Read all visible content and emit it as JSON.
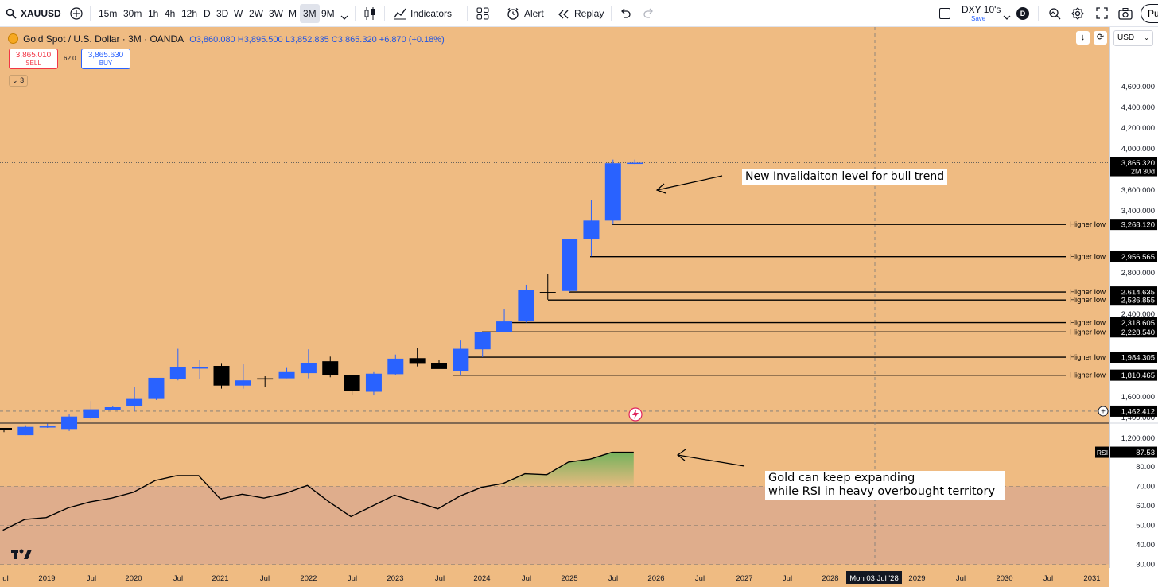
{
  "toolbar": {
    "symbol": "XAUUSD",
    "timeframes": [
      "15m",
      "30m",
      "1h",
      "4h",
      "12h",
      "D",
      "3D",
      "W",
      "2W",
      "3W",
      "M",
      "3M",
      "9M"
    ],
    "active_timeframe": "3M",
    "indicators_label": "Indicators",
    "alert_label": "Alert",
    "replay_label": "Replay",
    "layout_name": "DXY 10's",
    "layout_sub": "Save",
    "avatar_letter": "D",
    "publish_label": "Pu"
  },
  "legend": {
    "title": "Gold Spot / U.S. Dollar · 3M · OANDA",
    "open": "O3,860.080",
    "high": "H3,895.500",
    "low": "L3,852.835",
    "close": "C3,865.320",
    "change": "+6.870 (+0.18%)",
    "sell_price": "3,865.010",
    "sell_label": "SELL",
    "spread": "62.0",
    "buy_price": "3,865.630",
    "buy_label": "BUY",
    "collapsed_count": "3"
  },
  "currency_selector": "USD",
  "price_axis_labels": [
    "4,600.000",
    "4,400.000",
    "4,200.000",
    "4,000.000",
    "3,600.000",
    "3,400.000",
    "2,800.000",
    "2,400.000",
    "1,600.000",
    "1,400.000",
    "1,200.000"
  ],
  "price_markers": [
    {
      "label": "3,865.320",
      "sub": "2M 30d",
      "type": "current"
    },
    {
      "label": "1,462.412",
      "type": "crosshair"
    }
  ],
  "time_axis_labels": [
    "ul",
    "2019",
    "Jul",
    "2020",
    "Jul",
    "2021",
    "Jul",
    "2022",
    "Jul",
    "2023",
    "Jul",
    "2024",
    "Jul",
    "2025",
    "Jul",
    "2026",
    "Jul",
    "2027",
    "Jul",
    "2028",
    "2029",
    "Jul",
    "2030",
    "Jul",
    "2031"
  ],
  "crosshair_date": "Mon 03 Jul '28",
  "rsi": {
    "label": "RSI",
    "value": "87.53",
    "axis_labels": [
      "80.00",
      "70.00",
      "60.00",
      "50.00",
      "40.00",
      "30.00"
    ],
    "overbought": 70,
    "oversold": 30
  },
  "annotations": {
    "invalidation": "New Invalidaiton level for bull trend",
    "rsi_note_line1": "Gold can keep expanding",
    "rsi_note_line2": "while RSI in heavy overbought territory"
  },
  "higher_lows": [
    {
      "label": "Higher low",
      "price": "3,268.120"
    },
    {
      "label": "Higher low",
      "price": "2,956.565"
    },
    {
      "label": "Higher low",
      "price": "2,614.635"
    },
    {
      "label": "Higher low",
      "price": "2,536.855"
    },
    {
      "label": "Higher low",
      "price": "2,318.605"
    },
    {
      "label": "Higher low",
      "price": "2,228.540"
    },
    {
      "label": "Higher low",
      "price": "1,984.305"
    },
    {
      "label": "Higher low",
      "price": "1,810.465"
    }
  ],
  "chart_data": {
    "type": "candlestick",
    "series": [
      {
        "name": "candles",
        "values": [
          {
            "o": 1300,
            "h": 1300,
            "l": 1260,
            "c": 1280
          },
          {
            "o": 1230,
            "h": 1325,
            "l": 1230,
            "c": 1310
          },
          {
            "o": 1310,
            "h": 1340,
            "l": 1300,
            "c": 1315
          },
          {
            "o": 1290,
            "h": 1430,
            "l": 1270,
            "c": 1410
          },
          {
            "o": 1400,
            "h": 1560,
            "l": 1380,
            "c": 1480
          },
          {
            "o": 1470,
            "h": 1510,
            "l": 1470,
            "c": 1500
          },
          {
            "o": 1510,
            "h": 1700,
            "l": 1460,
            "c": 1580
          },
          {
            "o": 1580,
            "h": 1780,
            "l": 1570,
            "c": 1785
          },
          {
            "o": 1770,
            "h": 2065,
            "l": 1760,
            "c": 1890
          },
          {
            "o": 1880,
            "h": 1960,
            "l": 1770,
            "c": 1885
          },
          {
            "o": 1900,
            "h": 1920,
            "l": 1680,
            "c": 1710
          },
          {
            "o": 1710,
            "h": 1915,
            "l": 1680,
            "c": 1760
          },
          {
            "o": 1780,
            "h": 1800,
            "l": 1700,
            "c": 1770
          },
          {
            "o": 1780,
            "h": 1880,
            "l": 1780,
            "c": 1840
          },
          {
            "o": 1830,
            "h": 2060,
            "l": 1780,
            "c": 1930
          },
          {
            "o": 1945,
            "h": 1990,
            "l": 1790,
            "c": 1815
          },
          {
            "o": 1810,
            "h": 1815,
            "l": 1615,
            "c": 1660
          },
          {
            "o": 1650,
            "h": 1840,
            "l": 1615,
            "c": 1825
          },
          {
            "o": 1820,
            "h": 2010,
            "l": 1810,
            "c": 1970
          },
          {
            "o": 1975,
            "h": 2070,
            "l": 1895,
            "c": 1920
          },
          {
            "o": 1925,
            "h": 1955,
            "l": 1880,
            "c": 1870
          },
          {
            "o": 1850,
            "h": 2145,
            "l": 1810,
            "c": 2065
          },
          {
            "o": 2060,
            "h": 2230,
            "l": 1985,
            "c": 2230
          },
          {
            "o": 2230,
            "h": 2450,
            "l": 2230,
            "c": 2330
          },
          {
            "o": 2330,
            "h": 2685,
            "l": 2320,
            "c": 2635
          },
          {
            "o": 2615,
            "h": 2790,
            "l": 2540,
            "c": 2612
          },
          {
            "o": 2625,
            "h": 3130,
            "l": 2615,
            "c": 3125
          },
          {
            "o": 3125,
            "h": 3500,
            "l": 2960,
            "c": 3305
          },
          {
            "o": 3305,
            "h": 3895,
            "l": 3268,
            "c": 3860
          },
          {
            "o": 3860,
            "h": 3895,
            "l": 3852,
            "c": 3865
          }
        ]
      },
      {
        "name": "RSI",
        "values": [
          47.5,
          53,
          54,
          59,
          62,
          64,
          67,
          73,
          75.5,
          75.5,
          63.5,
          66,
          64,
          66.5,
          70.5,
          62,
          54.5,
          60,
          65.5,
          62,
          58.5,
          65,
          69.5,
          71.5,
          76.5,
          76,
          82.5,
          84,
          87.5,
          87.5
        ]
      }
    ],
    "y_range": [
      1150,
      4750
    ],
    "rsi_range": [
      25,
      90
    ]
  }
}
